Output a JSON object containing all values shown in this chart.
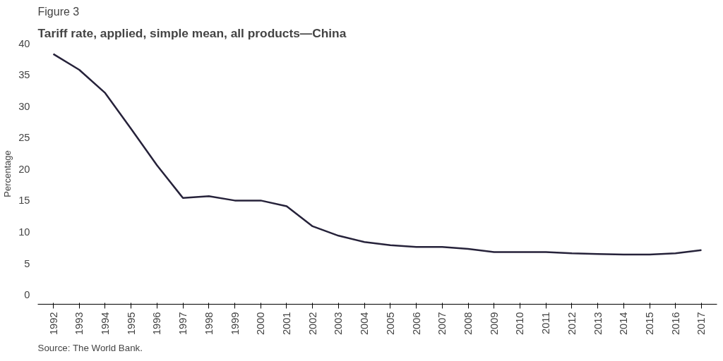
{
  "chart_data": {
    "type": "line",
    "title": "Tariff rate, applied, simple mean, all products—China",
    "ylabel": "Percentage",
    "annotations": [
      "Figure 3",
      "Source: The World Bank."
    ],
    "categories": [
      "1992",
      "1993",
      "1994",
      "1995",
      "1996",
      "1997",
      "1998",
      "1999",
      "2000",
      "2001",
      "2002",
      "2003",
      "2004",
      "2005",
      "2006",
      "2007",
      "2008",
      "2009",
      "2010",
      "2011",
      "2012",
      "2013",
      "2014",
      "2015",
      "2016",
      "2017"
    ],
    "series": [
      {
        "color": "#26223a",
        "values": [
          38.3,
          35.8,
          32.1,
          26.4,
          20.6,
          15.4,
          15.7,
          15.0,
          15.0,
          14.1,
          10.9,
          9.4,
          8.4,
          7.9,
          7.6,
          7.6,
          7.3,
          6.8,
          6.8,
          6.8,
          6.6,
          6.5,
          6.4,
          6.4,
          6.6,
          7.1
        ]
      }
    ],
    "ylim": [
      -1.5,
      40
    ],
    "yticks": [
      0,
      5,
      10,
      15,
      20,
      25,
      30,
      35,
      40
    ],
    "grid": false,
    "marker": "none",
    "line_style": "solid"
  }
}
